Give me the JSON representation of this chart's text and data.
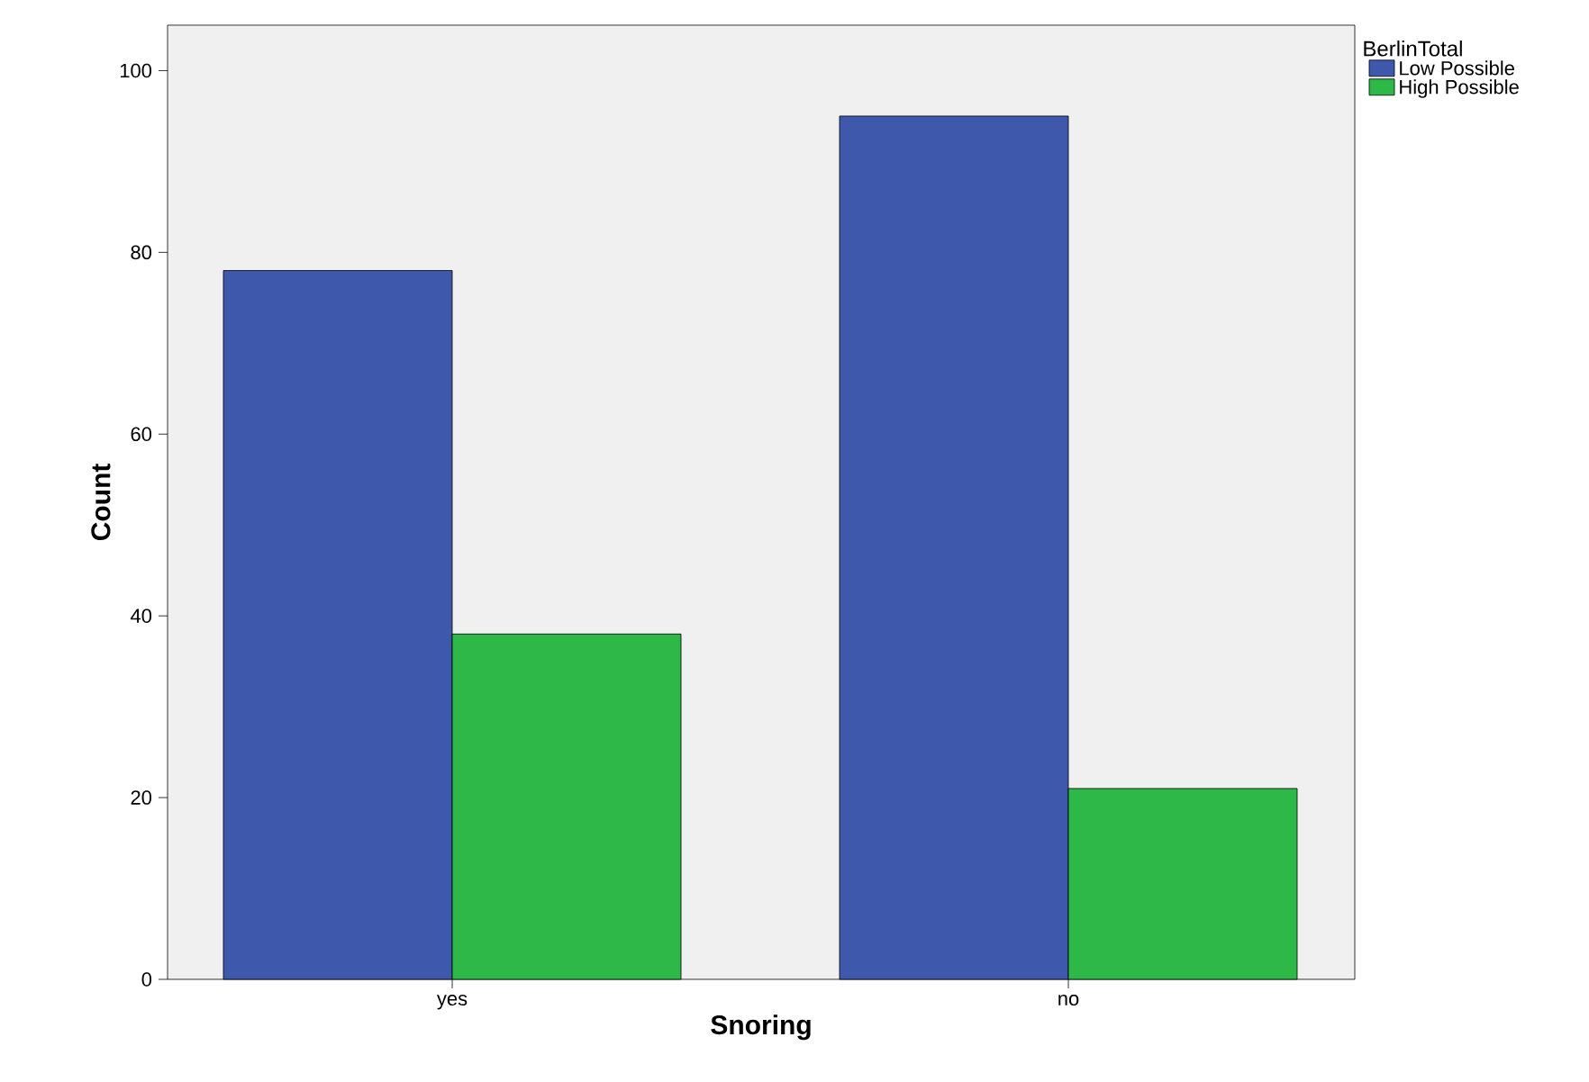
{
  "chart_data": {
    "type": "bar",
    "xlabel": "Snoring",
    "ylabel": "Count",
    "legend_title": "BerlinTotal",
    "categories": [
      "yes",
      "no"
    ],
    "series": [
      {
        "name": "Low Possible",
        "color": "#3e58ac",
        "values": [
          78,
          95
        ]
      },
      {
        "name": "High Possible",
        "color": "#2eb848",
        "values": [
          38,
          21
        ]
      }
    ],
    "ylim": [
      0,
      105
    ],
    "yticks": [
      0,
      20,
      40,
      60,
      80,
      100
    ],
    "grid": false,
    "legend": "top right"
  }
}
